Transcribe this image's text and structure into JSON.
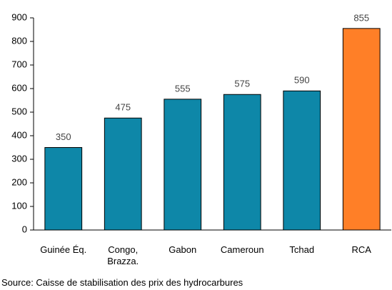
{
  "chart_data": {
    "type": "bar",
    "categories": [
      "Guinée Éq.",
      "Congo, Brazza.",
      "Gabon",
      "Cameroun",
      "Tchad",
      "RCA"
    ],
    "values": [
      350,
      475,
      555,
      575,
      590,
      855
    ],
    "colors": [
      "#0e87a8",
      "#0e87a8",
      "#0e87a8",
      "#0e87a8",
      "#0e87a8",
      "#ff7f27"
    ],
    "ylim": [
      0,
      900
    ],
    "yticks": [
      0,
      100,
      200,
      300,
      400,
      500,
      600,
      700,
      800,
      900
    ],
    "grid": false,
    "source": "Source: Caisse de stabilisation des prix des hydrocarbures"
  }
}
